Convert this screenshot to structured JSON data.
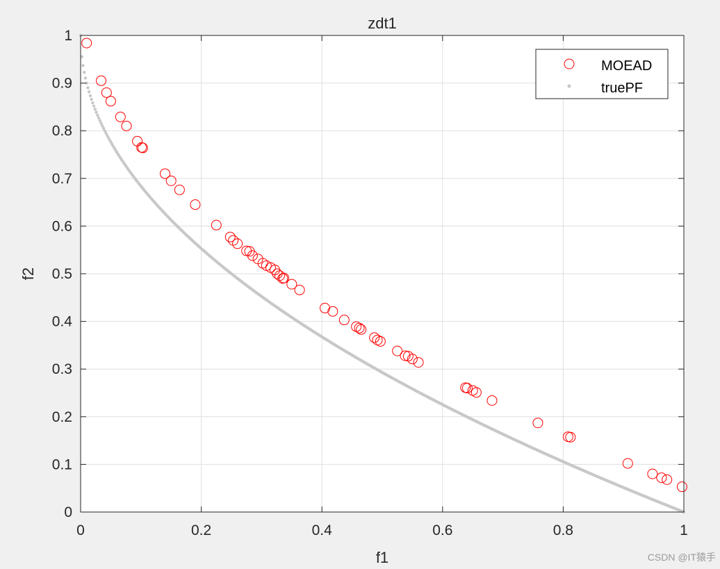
{
  "chart_data": {
    "type": "scatter",
    "title": "zdt1",
    "xlabel": "f1",
    "ylabel": "f2",
    "xlim": [
      0,
      1
    ],
    "ylim": [
      0,
      1
    ],
    "xticks": [
      "0",
      "0.2",
      "0.4",
      "0.6",
      "0.8",
      "1"
    ],
    "yticks": [
      "0",
      "0.1",
      "0.2",
      "0.3",
      "0.4",
      "0.5",
      "0.6",
      "0.7",
      "0.8",
      "0.9",
      "1"
    ],
    "grid": true,
    "legend_location": "top-right",
    "series": [
      {
        "name": "MOEAD",
        "marker": "circle",
        "color": "#ff0000",
        "points": [
          [
            0.01,
            0.984
          ],
          [
            0.034,
            0.905
          ],
          [
            0.043,
            0.88
          ],
          [
            0.05,
            0.862
          ],
          [
            0.066,
            0.829
          ],
          [
            0.076,
            0.81
          ],
          [
            0.094,
            0.778
          ],
          [
            0.101,
            0.765
          ],
          [
            0.103,
            0.764
          ],
          [
            0.14,
            0.71
          ],
          [
            0.15,
            0.695
          ],
          [
            0.164,
            0.676
          ],
          [
            0.19,
            0.645
          ],
          [
            0.225,
            0.602
          ],
          [
            0.248,
            0.577
          ],
          [
            0.253,
            0.57
          ],
          [
            0.26,
            0.563
          ],
          [
            0.275,
            0.548
          ],
          [
            0.28,
            0.547
          ],
          [
            0.285,
            0.538
          ],
          [
            0.294,
            0.531
          ],
          [
            0.302,
            0.522
          ],
          [
            0.308,
            0.517
          ],
          [
            0.315,
            0.513
          ],
          [
            0.322,
            0.508
          ],
          [
            0.326,
            0.5
          ],
          [
            0.33,
            0.496
          ],
          [
            0.335,
            0.49
          ],
          [
            0.337,
            0.491
          ],
          [
            0.35,
            0.478
          ],
          [
            0.363,
            0.466
          ],
          [
            0.405,
            0.428
          ],
          [
            0.418,
            0.421
          ],
          [
            0.437,
            0.403
          ],
          [
            0.457,
            0.389
          ],
          [
            0.462,
            0.386
          ],
          [
            0.465,
            0.383
          ],
          [
            0.487,
            0.366
          ],
          [
            0.492,
            0.361
          ],
          [
            0.497,
            0.358
          ],
          [
            0.525,
            0.338
          ],
          [
            0.538,
            0.328
          ],
          [
            0.543,
            0.327
          ],
          [
            0.55,
            0.321
          ],
          [
            0.56,
            0.314
          ],
          [
            0.638,
            0.261
          ],
          [
            0.641,
            0.26
          ],
          [
            0.65,
            0.255
          ],
          [
            0.656,
            0.251
          ],
          [
            0.682,
            0.234
          ],
          [
            0.758,
            0.187
          ],
          [
            0.808,
            0.158
          ],
          [
            0.812,
            0.157
          ],
          [
            0.907,
            0.102
          ],
          [
            0.948,
            0.08
          ],
          [
            0.963,
            0.072
          ],
          [
            0.972,
            0.068
          ],
          [
            0.997,
            0.053
          ]
        ]
      },
      {
        "name": "truePF",
        "marker": "dot",
        "color": "#c8c8c8",
        "formula": "f2 = 1 - sqrt(f1)",
        "samples": 500
      }
    ]
  },
  "watermark": "CSDN @IT猿手"
}
